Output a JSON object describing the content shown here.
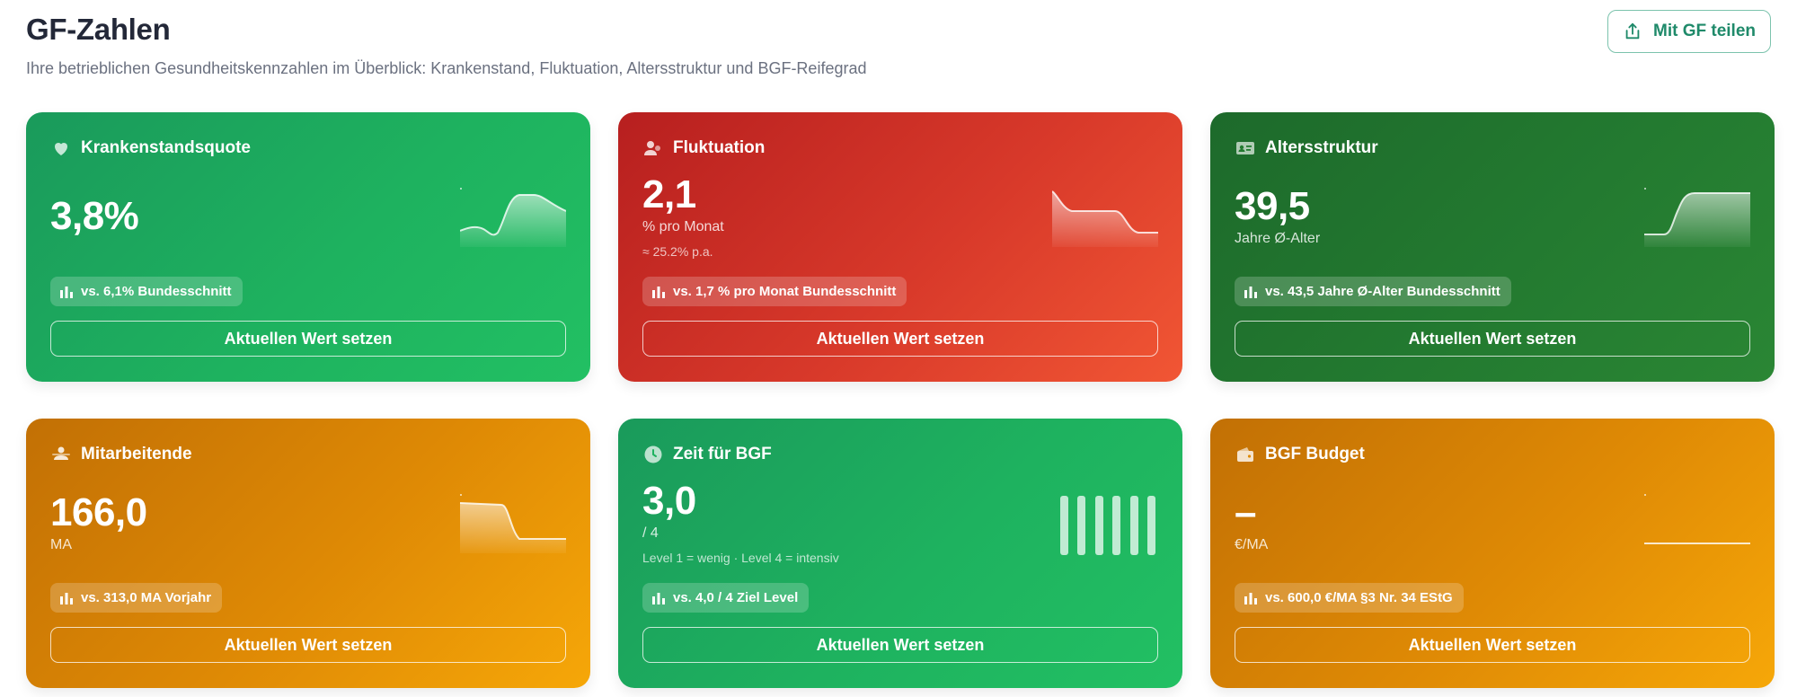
{
  "header": {
    "title": "GF-Zahlen",
    "subtitle": "Ihre betrieblichen Gesundheitskennzahlen im Überblick: Krankenstand, Fluktuation, Altersstruktur und BGF-Reifegrad",
    "share_label": "Mit GF teilen",
    "share_icon": "share-icon"
  },
  "colors": {
    "green": "#1eb25f",
    "red": "#d8392a",
    "dark_green": "#237a30",
    "orange": "#df8a05",
    "accent": "#1f8a6a"
  },
  "cards": [
    {
      "title": "Krankenstandsquote",
      "icon": "heart-icon",
      "value": "3,8%",
      "compare": "vs. 6,1% Bundesschnitt",
      "button": "Aktuellen Wert setzen"
    },
    {
      "title": "Fluktuation",
      "icon": "users-icon",
      "value": "2,1",
      "unit": "% pro Monat",
      "note": "≈ 25.2% p.a.",
      "compare": "vs. 1,7 % pro Monat Bundesschnitt",
      "button": "Aktuellen Wert setzen"
    },
    {
      "title": "Altersstruktur",
      "icon": "id-card-icon",
      "value": "39,5",
      "unit": "Jahre Ø-Alter",
      "compare": "vs. 43,5 Jahre Ø-Alter Bundesschnitt",
      "button": "Aktuellen Wert setzen"
    },
    {
      "title": "Mitarbeitende",
      "icon": "team-icon",
      "value": "166,0",
      "unit": "MA",
      "compare": "vs. 313,0 MA Vorjahr",
      "button": "Aktuellen Wert setzen"
    },
    {
      "title": "Zeit für BGF",
      "icon": "clock-icon",
      "value": "3,0",
      "unit": "/ 4",
      "note": "Level 1 = wenig · Level 4 = intensiv",
      "compare": "vs. 4,0 / 4 Ziel Level",
      "button": "Aktuellen Wert setzen"
    },
    {
      "title": "BGF Budget",
      "icon": "wallet-icon",
      "value": "–",
      "unit": "€/MA",
      "compare": "vs. 600,0 €/MA §3 Nr. 34 EStG",
      "button": "Aktuellen Wert setzen"
    }
  ]
}
